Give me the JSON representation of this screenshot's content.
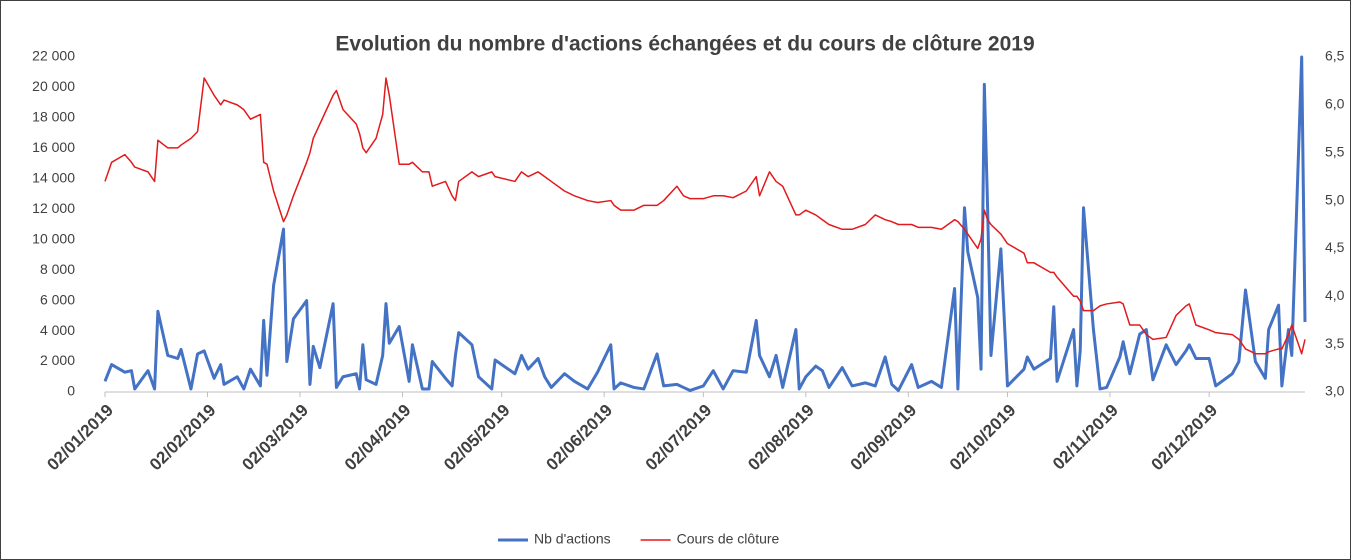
{
  "chart_data": {
    "type": "line",
    "title": "Evolution du nombre d'actions échangées et du cours de clôture 2019",
    "x": [
      "02/01/2019",
      "04/01/2019",
      "08/01/2019",
      "10/01/2019",
      "11/01/2019",
      "15/01/2019",
      "17/01/2019",
      "18/01/2019",
      "21/01/2019",
      "24/01/2019",
      "25/01/2019",
      "28/01/2019",
      "30/01/2019",
      "01/02/2019",
      "04/02/2019",
      "06/02/2019",
      "07/02/2019",
      "11/02/2019",
      "13/02/2019",
      "15/02/2019",
      "18/02/2019",
      "19/02/2019",
      "20/02/2019",
      "22/02/2019",
      "25/02/2019",
      "26/02/2019",
      "28/02/2019",
      "04/03/2019",
      "05/03/2019",
      "06/03/2019",
      "08/03/2019",
      "12/03/2019",
      "13/03/2019",
      "15/03/2019",
      "19/03/2019",
      "20/03/2019",
      "21/03/2019",
      "22/03/2019",
      "25/03/2019",
      "27/03/2019",
      "28/03/2019",
      "29/03/2019",
      "01/04/2019",
      "04/04/2019",
      "05/04/2019",
      "08/04/2019",
      "10/04/2019",
      "11/04/2019",
      "15/04/2019",
      "17/04/2019",
      "18/04/2019",
      "19/04/2019",
      "23/04/2019",
      "25/04/2019",
      "29/04/2019",
      "30/04/2019",
      "06/05/2019",
      "08/05/2019",
      "10/05/2019",
      "13/05/2019",
      "15/05/2019",
      "17/05/2019",
      "21/05/2019",
      "24/05/2019",
      "28/05/2019",
      "31/05/2019",
      "04/06/2019",
      "05/06/2019",
      "07/06/2019",
      "11/06/2019",
      "14/06/2019",
      "18/06/2019",
      "20/06/2019",
      "24/06/2019",
      "26/06/2019",
      "28/06/2019",
      "02/07/2019",
      "05/07/2019",
      "08/07/2019",
      "11/07/2019",
      "15/07/2019",
      "18/07/2019",
      "19/07/2019",
      "22/07/2019",
      "24/07/2019",
      "26/07/2019",
      "30/07/2019",
      "31/07/2019",
      "02/08/2019",
      "05/08/2019",
      "07/08/2019",
      "09/08/2019",
      "13/08/2019",
      "16/08/2019",
      "20/08/2019",
      "23/08/2019",
      "26/08/2019",
      "28/08/2019",
      "30/08/2019",
      "03/09/2019",
      "05/09/2019",
      "09/09/2019",
      "12/09/2019",
      "16/09/2019",
      "17/09/2019",
      "19/09/2019",
      "20/09/2019",
      "23/09/2019",
      "24/09/2019",
      "25/09/2019",
      "26/09/2019",
      "27/09/2019",
      "30/09/2019",
      "02/10/2019",
      "07/10/2019",
      "08/10/2019",
      "10/10/2019",
      "15/10/2019",
      "16/10/2019",
      "17/10/2019",
      "22/10/2019",
      "23/10/2019",
      "24/10/2019",
      "25/10/2019",
      "28/10/2019",
      "30/10/2019",
      "01/11/2019",
      "05/11/2019",
      "06/11/2019",
      "08/11/2019",
      "11/11/2019",
      "13/11/2019",
      "15/11/2019",
      "19/11/2019",
      "22/11/2019",
      "25/11/2019",
      "26/11/2019",
      "28/11/2019",
      "02/12/2019",
      "04/12/2019",
      "09/12/2019",
      "11/12/2019",
      "13/12/2019",
      "16/12/2019",
      "19/12/2019",
      "20/12/2019",
      "23/12/2019",
      "24/12/2019",
      "26/12/2019",
      "27/12/2019",
      "30/12/2019",
      "31/12/2019"
    ],
    "series": [
      {
        "name": "Nb d'actions",
        "color": "#4472c4",
        "axis": "y",
        "values": [
          700,
          1800,
          1300,
          1400,
          200,
          1400,
          200,
          5300,
          2400,
          2200,
          2800,
          200,
          2500,
          2700,
          900,
          1800,
          500,
          1000,
          200,
          1500,
          400,
          4700,
          1100,
          7000,
          10700,
          2000,
          4800,
          6000,
          500,
          3000,
          1600,
          5800,
          300,
          1000,
          1200,
          200,
          3100,
          800,
          500,
          2400,
          5800,
          3200,
          4300,
          700,
          3100,
          200,
          200,
          2000,
          900,
          400,
          2400,
          3900,
          3100,
          1000,
          200,
          2100,
          1200,
          2400,
          1500,
          2200,
          1000,
          300,
          1200,
          700,
          200,
          1300,
          3100,
          200,
          600,
          300,
          200,
          2500,
          400,
          500,
          300,
          100,
          400,
          1400,
          200,
          1400,
          1300,
          4700,
          2400,
          1000,
          2400,
          300,
          4100,
          200,
          1000,
          1700,
          1400,
          300,
          1600,
          400,
          600,
          400,
          2300,
          500,
          100,
          1800,
          300,
          700,
          300,
          6800,
          200,
          12100,
          9200,
          6200,
          1500,
          20200,
          12000,
          2400,
          9400,
          400,
          1500,
          2300,
          1500,
          2200,
          5600,
          700,
          4100,
          400,
          2700,
          12100,
          4100,
          200,
          300,
          2300,
          3300,
          1200,
          3800,
          4100,
          800,
          3100,
          1800,
          2700,
          3100,
          2200,
          2200,
          400,
          1200,
          2000,
          6700,
          2000,
          900,
          4100,
          5700,
          400,
          4100,
          2400,
          22000,
          4600
        ]
      },
      {
        "name": "Cours de clôture",
        "color": "#e31a1c",
        "axis": "y2",
        "values": [
          5.2,
          5.4,
          5.48,
          5.4,
          5.35,
          5.3,
          5.2,
          5.63,
          5.55,
          5.55,
          5.58,
          5.65,
          5.72,
          6.28,
          6.1,
          6.0,
          6.05,
          6.0,
          5.95,
          5.85,
          5.9,
          5.4,
          5.38,
          5.1,
          4.78,
          4.85,
          5.05,
          5.4,
          5.5,
          5.65,
          5.8,
          6.1,
          6.15,
          5.95,
          5.8,
          5.7,
          5.55,
          5.5,
          5.65,
          5.9,
          6.28,
          6.1,
          5.38,
          5.38,
          5.4,
          5.3,
          5.3,
          5.15,
          5.2,
          5.05,
          5.0,
          5.2,
          5.3,
          5.25,
          5.3,
          5.25,
          5.2,
          5.3,
          5.25,
          5.3,
          5.25,
          5.2,
          5.1,
          5.05,
          5.0,
          4.98,
          5.0,
          4.95,
          4.9,
          4.9,
          4.95,
          4.95,
          5.0,
          5.15,
          5.05,
          5.02,
          5.02,
          5.05,
          5.05,
          5.03,
          5.1,
          5.25,
          5.05,
          5.3,
          5.2,
          5.15,
          4.85,
          4.85,
          4.9,
          4.85,
          4.8,
          4.75,
          4.7,
          4.7,
          4.75,
          4.85,
          4.8,
          4.78,
          4.75,
          4.75,
          4.72,
          4.72,
          4.7,
          4.8,
          4.78,
          4.7,
          4.65,
          4.5,
          4.6,
          4.9,
          4.8,
          4.75,
          4.65,
          4.55,
          4.45,
          4.35,
          4.35,
          4.25,
          4.25,
          4.2,
          4.0,
          4.0,
          3.95,
          3.85,
          3.85,
          3.9,
          3.92,
          3.94,
          3.92,
          3.7,
          3.7,
          3.6,
          3.55,
          3.57,
          3.8,
          3.9,
          3.92,
          3.7,
          3.65,
          3.62,
          3.6,
          3.55,
          3.45,
          3.4,
          3.4,
          3.42,
          3.45,
          3.45,
          3.6,
          3.7,
          3.4,
          3.55
        ]
      }
    ],
    "xlim": [
      "02/01/2019",
      "31/12/2019"
    ],
    "xticks": [
      "02/01/2019",
      "02/02/2019",
      "02/03/2019",
      "02/04/2019",
      "02/05/2019",
      "02/06/2019",
      "02/07/2019",
      "02/08/2019",
      "02/09/2019",
      "02/10/2019",
      "02/11/2019",
      "02/12/2019"
    ],
    "ylim": [
      0,
      22000
    ],
    "yticks": [
      0,
      {
        "value": 2000,
        "label": "2 000"
      },
      {
        "value": 4000,
        "label": "4 000"
      },
      {
        "value": 6000,
        "label": "6 000"
      },
      {
        "value": 8000,
        "label": "8 000"
      },
      {
        "value": 10000,
        "label": "10 000"
      },
      {
        "value": 12000,
        "label": "12 000"
      },
      {
        "value": 14000,
        "label": "14 000"
      },
      {
        "value": 16000,
        "label": "16 000"
      },
      {
        "value": 18000,
        "label": "18 000"
      },
      {
        "value": 20000,
        "label": "20 000"
      },
      {
        "value": 22000,
        "label": "22 000"
      }
    ],
    "y2lim": [
      3,
      6.5
    ],
    "y2ticks": [
      {
        "value": 3,
        "label": "3,0"
      },
      {
        "value": 3.5,
        "label": "3,5"
      },
      {
        "value": 4,
        "label": "4,0"
      },
      {
        "value": 4.5,
        "label": "4,5"
      },
      {
        "value": 5,
        "label": "5,0"
      },
      {
        "value": 5.5,
        "label": "5,5"
      },
      {
        "value": 6,
        "label": "6,0"
      },
      {
        "value": 6.5,
        "label": "6,5"
      }
    ],
    "legend": "bottom"
  }
}
